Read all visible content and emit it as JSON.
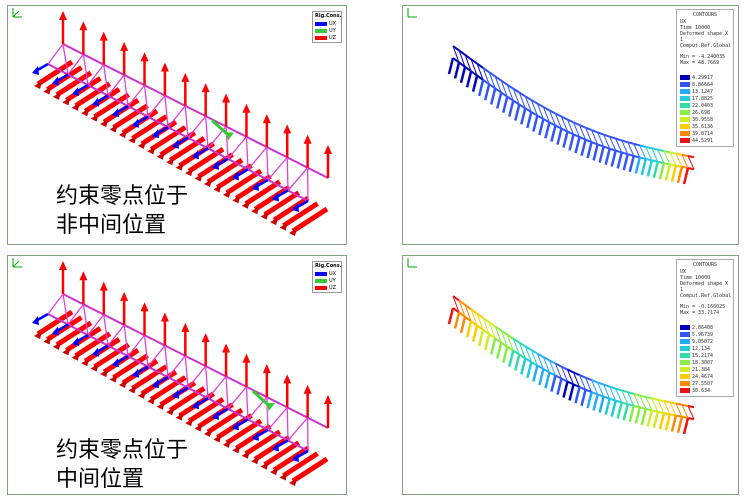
{
  "panels": [
    {
      "id": "p1",
      "legend": {
        "title": "Rig.Cons.",
        "items": [
          {
            "label": "UX",
            "color": "#0000ff"
          },
          {
            "label": "UY",
            "color": "#33cc33"
          },
          {
            "label": "UZ",
            "color": "#ff0000"
          }
        ]
      },
      "caption": [
        "约束零点位于",
        "非中间位置"
      ]
    },
    {
      "id": "p2",
      "contours": {
        "title": "CONTOURS",
        "lines": [
          "UX",
          "Time 10000",
          "Deformed shape X 1",
          "Comput.Ref.Global"
        ],
        "min_label": "Min = -4.240035",
        "max_label": "Max = 48.7669",
        "values": [
          "4.29917",
          "8.86664",
          "13.1247",
          "17.8825",
          "22.0403",
          "26.698",
          "30.9558",
          "35.6136",
          "39.8714",
          "44.5291"
        ],
        "colors": [
          "#0000bb",
          "#3355ff",
          "#22aaff",
          "#22ccdd",
          "#33ddaa",
          "#88ee44",
          "#ccee22",
          "#ffcc00",
          "#ff8800",
          "#ee1111"
        ]
      }
    },
    {
      "id": "p3",
      "legend": {
        "title": "Rig.Cons.",
        "items": [
          {
            "label": "UX",
            "color": "#0000ff"
          },
          {
            "label": "UY",
            "color": "#33cc33"
          },
          {
            "label": "UZ",
            "color": "#ff0000"
          }
        ]
      },
      "caption": [
        "约束零点位于",
        "中间位置"
      ]
    },
    {
      "id": "p4",
      "contours": {
        "title": "CONTOURS",
        "lines": [
          "UX",
          "Time 10000",
          "Deformed shape X 1",
          "Comput.Ref.Global"
        ],
        "min_label": "Min = -0.166025",
        "max_label": "Max = 33.7174",
        "values": [
          "2.86408",
          "5.96739",
          "9.05072",
          "12.134",
          "15.2174",
          "18.3007",
          "21.384",
          "24.4674",
          "27.5507",
          "30.634"
        ],
        "colors": [
          "#0000bb",
          "#3355ff",
          "#22aaff",
          "#22ccdd",
          "#33ddaa",
          "#88ee44",
          "#ccee22",
          "#ffcc00",
          "#ff8800",
          "#ee1111"
        ]
      }
    }
  ]
}
